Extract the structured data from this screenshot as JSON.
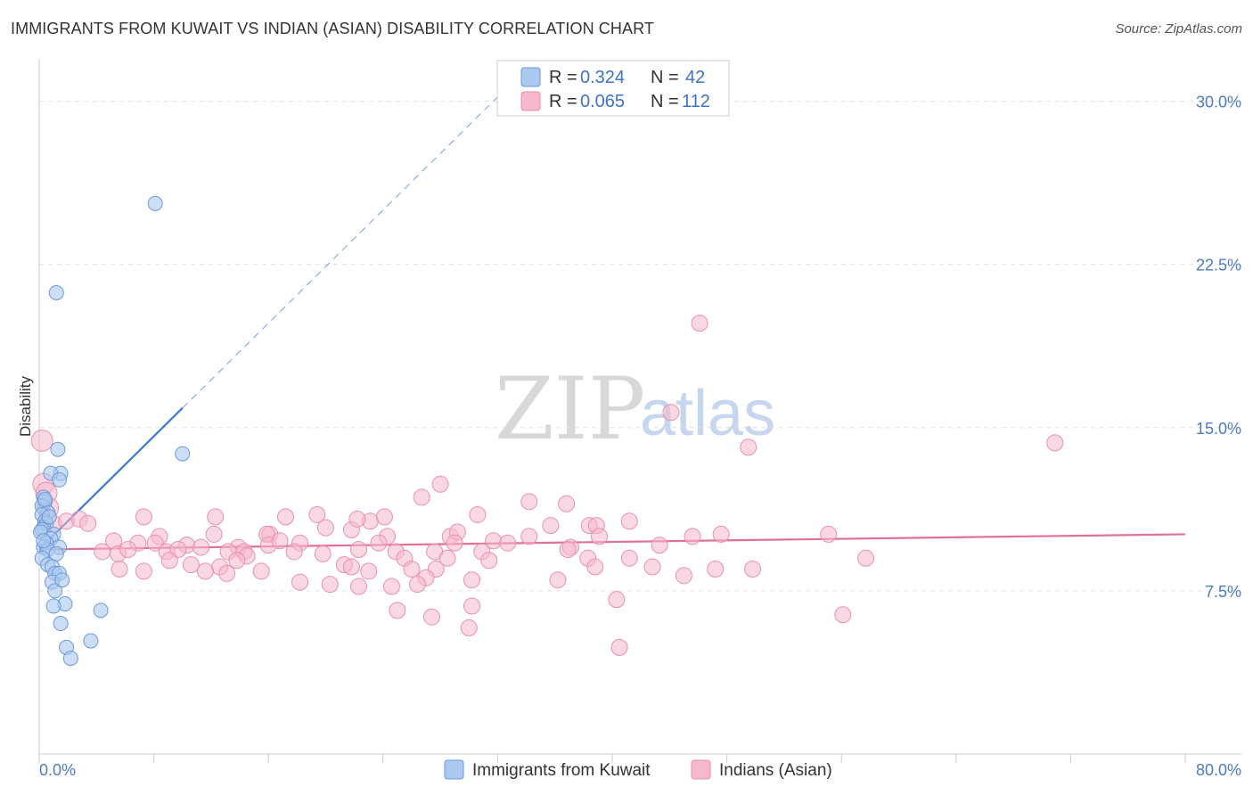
{
  "title": "IMMIGRANTS FROM KUWAIT VS INDIAN (ASIAN) DISABILITY CORRELATION CHART",
  "source": "Source: ZipAtlas.com",
  "watermark": {
    "part1": "ZIP",
    "part2": "atlas"
  },
  "colors": {
    "blue_fill": "#aac8f0",
    "blue_stroke": "#6a9ad8",
    "blue_line": "#3a7ad0",
    "pink_fill": "#f5b8cc",
    "pink_stroke": "#e890ae",
    "pink_line": "#e0709a",
    "grid": "#e0e0e0",
    "tick_text": "#4a7cc4"
  },
  "legend": {
    "r_label": "R =",
    "n_label": "N =",
    "rows": [
      {
        "series": "blue",
        "r": "0.324",
        "n": "42"
      },
      {
        "series": "pink",
        "r": "0.065",
        "n": "112"
      }
    ]
  },
  "chart_data": {
    "type": "scatter",
    "title": "IMMIGRANTS FROM KUWAIT VS INDIAN (ASIAN) DISABILITY CORRELATION CHART",
    "xlabel": "",
    "ylabel": "Disability",
    "xlim": [
      0,
      80
    ],
    "ylim": [
      0,
      31.5
    ],
    "x_tick_labels": [
      "0.0%",
      "80.0%"
    ],
    "y_ticks": [
      7.5,
      15.0,
      22.5,
      30.0
    ],
    "y_tick_labels": [
      "7.5%",
      "15.0%",
      "22.5%",
      "30.0%"
    ],
    "grid": true,
    "legend_position": "bottom-center",
    "series": [
      {
        "name": "Immigrants from Kuwait",
        "color": "blue",
        "trend": {
          "x0": 0,
          "y0": 9.4,
          "x1": 10,
          "y1": 15.9,
          "dashed_to_x": 32
        },
        "points": [
          [
            8.1,
            25.3
          ],
          [
            1.2,
            21.2
          ],
          [
            1.3,
            14.0
          ],
          [
            10.0,
            13.8
          ],
          [
            1.5,
            12.9
          ],
          [
            0.8,
            12.9
          ],
          [
            1.4,
            12.6
          ],
          [
            0.3,
            11.8
          ],
          [
            0.4,
            11.6
          ],
          [
            0.2,
            11.4
          ],
          [
            0.6,
            11.1
          ],
          [
            0.2,
            11.0
          ],
          [
            0.4,
            10.7
          ],
          [
            0.5,
            10.6
          ],
          [
            0.3,
            10.4
          ],
          [
            0.2,
            10.3
          ],
          [
            0.1,
            10.2
          ],
          [
            1.0,
            10.1
          ],
          [
            0.8,
            9.9
          ],
          [
            0.5,
            9.7
          ],
          [
            0.3,
            9.5
          ],
          [
            1.4,
            9.5
          ],
          [
            0.6,
            9.4
          ],
          [
            1.2,
            9.2
          ],
          [
            0.2,
            9.0
          ],
          [
            0.6,
            8.7
          ],
          [
            0.9,
            8.6
          ],
          [
            1.1,
            8.3
          ],
          [
            1.4,
            8.3
          ],
          [
            0.9,
            7.9
          ],
          [
            1.1,
            7.5
          ],
          [
            1.8,
            6.9
          ],
          [
            1.0,
            6.8
          ],
          [
            4.3,
            6.6
          ],
          [
            1.5,
            6.0
          ],
          [
            3.6,
            5.2
          ],
          [
            1.9,
            4.9
          ],
          [
            2.2,
            4.4
          ],
          [
            0.4,
            11.7
          ],
          [
            0.7,
            10.9
          ],
          [
            0.3,
            9.8
          ],
          [
            1.6,
            8.0
          ]
        ]
      },
      {
        "name": "Indians (Asian)",
        "color": "pink",
        "trend": {
          "x0": 0,
          "y0": 9.4,
          "x1": 80,
          "y1": 10.1
        },
        "points": [
          [
            46.1,
            19.8
          ],
          [
            44.1,
            15.7
          ],
          [
            49.5,
            14.1
          ],
          [
            70.9,
            14.3
          ],
          [
            0.2,
            14.4
          ],
          [
            0.3,
            12.4
          ],
          [
            0.5,
            12.0
          ],
          [
            0.6,
            11.3
          ],
          [
            28.0,
            12.4
          ],
          [
            26.7,
            11.8
          ],
          [
            34.2,
            11.6
          ],
          [
            36.8,
            11.5
          ],
          [
            7.3,
            10.9
          ],
          [
            12.3,
            10.9
          ],
          [
            17.2,
            10.9
          ],
          [
            19.4,
            11.0
          ],
          [
            24.1,
            10.9
          ],
          [
            30.6,
            11.0
          ],
          [
            1.0,
            10.6
          ],
          [
            1.9,
            10.7
          ],
          [
            2.8,
            10.8
          ],
          [
            3.4,
            10.6
          ],
          [
            20.0,
            10.4
          ],
          [
            21.8,
            10.3
          ],
          [
            23.1,
            10.7
          ],
          [
            22.2,
            10.8
          ],
          [
            35.7,
            10.5
          ],
          [
            38.4,
            10.5
          ],
          [
            38.9,
            10.5
          ],
          [
            41.2,
            10.7
          ],
          [
            16.1,
            10.1
          ],
          [
            8.4,
            10.0
          ],
          [
            12.2,
            10.1
          ],
          [
            15.9,
            10.1
          ],
          [
            24.3,
            10.0
          ],
          [
            28.7,
            10.0
          ],
          [
            34.2,
            10.0
          ],
          [
            39.1,
            10.0
          ],
          [
            45.6,
            10.0
          ],
          [
            47.6,
            10.1
          ],
          [
            55.1,
            10.1
          ],
          [
            29.2,
            10.2
          ],
          [
            5.2,
            9.8
          ],
          [
            6.9,
            9.7
          ],
          [
            8.1,
            9.7
          ],
          [
            10.3,
            9.6
          ],
          [
            13.9,
            9.5
          ],
          [
            16.0,
            9.6
          ],
          [
            16.8,
            9.8
          ],
          [
            18.2,
            9.7
          ],
          [
            23.7,
            9.7
          ],
          [
            29.0,
            9.7
          ],
          [
            31.7,
            9.8
          ],
          [
            32.7,
            9.7
          ],
          [
            37.1,
            9.5
          ],
          [
            43.3,
            9.6
          ],
          [
            4.4,
            9.3
          ],
          [
            5.5,
            9.2
          ],
          [
            6.2,
            9.4
          ],
          [
            8.9,
            9.3
          ],
          [
            9.7,
            9.4
          ],
          [
            11.3,
            9.5
          ],
          [
            13.2,
            9.3
          ],
          [
            14.3,
            9.3
          ],
          [
            17.8,
            9.3
          ],
          [
            19.8,
            9.2
          ],
          [
            22.3,
            9.4
          ],
          [
            24.9,
            9.3
          ],
          [
            27.6,
            9.3
          ],
          [
            30.9,
            9.3
          ],
          [
            36.9,
            9.4
          ],
          [
            14.5,
            9.1
          ],
          [
            25.5,
            9.0
          ],
          [
            28.5,
            9.0
          ],
          [
            38.3,
            9.0
          ],
          [
            31.4,
            8.9
          ],
          [
            41.2,
            9.0
          ],
          [
            57.7,
            9.0
          ],
          [
            9.1,
            8.9
          ],
          [
            13.8,
            8.9
          ],
          [
            10.6,
            8.7
          ],
          [
            21.3,
            8.7
          ],
          [
            21.8,
            8.6
          ],
          [
            26.0,
            8.5
          ],
          [
            27.7,
            8.5
          ],
          [
            38.8,
            8.6
          ],
          [
            42.8,
            8.6
          ],
          [
            47.2,
            8.5
          ],
          [
            49.8,
            8.5
          ],
          [
            5.6,
            8.5
          ],
          [
            12.6,
            8.6
          ],
          [
            11.6,
            8.4
          ],
          [
            13.1,
            8.3
          ],
          [
            15.5,
            8.4
          ],
          [
            7.3,
            8.4
          ],
          [
            23.0,
            8.4
          ],
          [
            27.0,
            8.1
          ],
          [
            36.2,
            8.0
          ],
          [
            30.2,
            8.0
          ],
          [
            18.2,
            7.9
          ],
          [
            20.3,
            7.8
          ],
          [
            22.3,
            7.7
          ],
          [
            24.6,
            7.7
          ],
          [
            26.4,
            7.8
          ],
          [
            45.0,
            8.2
          ],
          [
            40.3,
            7.1
          ],
          [
            30.2,
            6.8
          ],
          [
            25.0,
            6.6
          ],
          [
            27.4,
            6.3
          ],
          [
            56.1,
            6.4
          ],
          [
            30.0,
            5.8
          ],
          [
            40.5,
            4.9
          ]
        ]
      }
    ]
  },
  "bottom_legend": [
    {
      "series": "blue",
      "label": "Immigrants from Kuwait"
    },
    {
      "series": "pink",
      "label": "Indians (Asian)"
    }
  ]
}
